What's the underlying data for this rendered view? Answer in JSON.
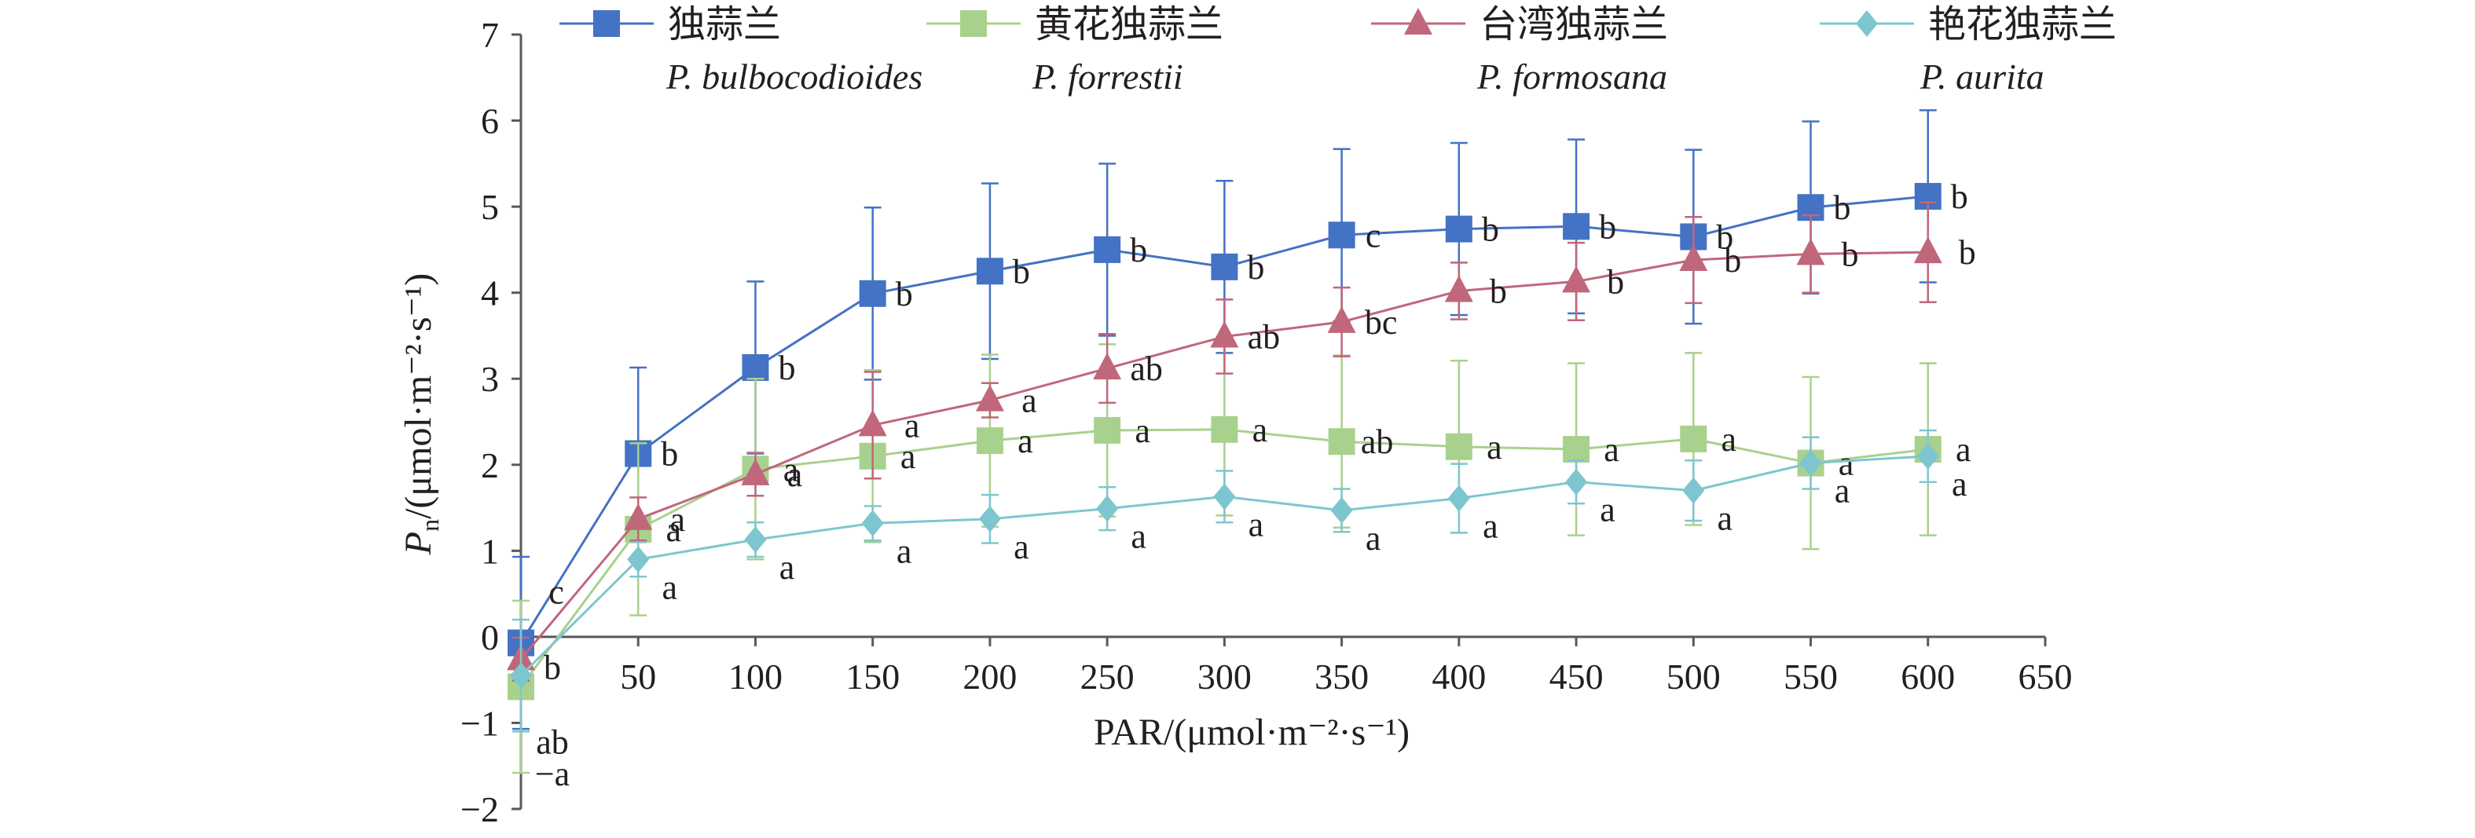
{
  "chart_data": {
    "type": "line",
    "title": "",
    "xlabel": "PAR/(μmol·m⁻²·s⁻¹)",
    "ylabel": {
      "main": "P",
      "sub": "n",
      "rest": "/(μmol·m⁻²·s⁻¹)"
    },
    "xlim": [
      0,
      650
    ],
    "ylim": [
      -2,
      7
    ],
    "x_ticks": [
      0,
      50,
      100,
      150,
      200,
      250,
      300,
      350,
      400,
      450,
      500,
      550,
      600,
      650
    ],
    "x_tick_labels": [
      "0",
      "50",
      "100",
      "150",
      "200",
      "250",
      "300",
      "350",
      "400",
      "450",
      "500",
      "550",
      "600",
      "650"
    ],
    "y_ticks": [
      -2,
      -1,
      0,
      1,
      2,
      3,
      4,
      5,
      6,
      7
    ],
    "y_tick_labels": [
      "−2",
      "−1",
      "0",
      "1",
      "2",
      "3",
      "4",
      "5",
      "6",
      "7"
    ],
    "grid": false,
    "legend_position": "top",
    "x": [
      0,
      50,
      100,
      150,
      200,
      250,
      300,
      350,
      400,
      450,
      500,
      550,
      600
    ],
    "series": [
      {
        "name": "独蒜兰",
        "sci_name": "P. bulbocodioides",
        "marker": "square",
        "color": "#4472c4",
        "values": [
          -0.07,
          2.13,
          3.13,
          3.99,
          4.25,
          4.5,
          4.3,
          4.67,
          4.74,
          4.77,
          4.65,
          4.99,
          5.12
        ],
        "errors": [
          1.0,
          1.0,
          1.0,
          1.0,
          1.02,
          1.0,
          1.0,
          1.0,
          1.0,
          1.01,
          1.01,
          1.0,
          1.0
        ],
        "sig": [
          "c",
          "b",
          "b",
          "b",
          "b",
          "b",
          "b",
          "c",
          "b",
          "b",
          "b",
          "b",
          "b"
        ]
      },
      {
        "name": "黄花独蒜兰",
        "sci_name": "P. forrestii",
        "marker": "square",
        "color": "#a9d18e",
        "values": [
          -0.58,
          1.25,
          1.95,
          2.1,
          2.28,
          2.4,
          2.41,
          2.27,
          2.21,
          2.18,
          2.3,
          2.02,
          2.18
        ],
        "errors": [
          1.0,
          1.0,
          1.05,
          1.0,
          1.0,
          1.0,
          1.0,
          1.0,
          1.0,
          1.0,
          1.0,
          1.0,
          1.0
        ],
        "sig": [
          "ab",
          "a",
          "a",
          "a",
          "a",
          "a",
          "a",
          "ab",
          "a",
          "a",
          "a",
          "a",
          "a"
        ]
      },
      {
        "name": "台湾独蒜兰",
        "sci_name": "P. formosana",
        "marker": "triangle",
        "color": "#c0677b",
        "values": [
          -0.26,
          1.37,
          1.89,
          2.46,
          2.75,
          3.12,
          3.49,
          3.66,
          4.02,
          4.13,
          4.38,
          4.45,
          4.47
        ],
        "errors": [
          0.25,
          0.25,
          0.25,
          0.62,
          0.2,
          0.4,
          0.43,
          0.4,
          0.33,
          0.45,
          0.5,
          0.45,
          0.58
        ],
        "sig": [
          "b",
          "a",
          "a",
          "a",
          "a",
          "ab",
          "ab",
          "bc",
          "b",
          "b",
          "b",
          "b",
          "b"
        ]
      },
      {
        "name": "艳花独蒜兰",
        "sci_name": "P. aurita",
        "marker": "diamond",
        "color": "#7ec6cf",
        "values": [
          -0.45,
          0.9,
          1.13,
          1.32,
          1.37,
          1.49,
          1.63,
          1.47,
          1.61,
          1.8,
          1.7,
          2.02,
          2.1
        ],
        "errors": [
          0.65,
          0.2,
          0.2,
          0.2,
          0.28,
          0.25,
          0.3,
          0.25,
          0.4,
          0.25,
          0.35,
          0.3,
          0.3
        ],
        "sig": [
          "−a",
          "a",
          "a",
          "a",
          "a",
          "a",
          "a",
          "a",
          "a",
          "a",
          "a",
          "a",
          "a"
        ]
      }
    ]
  }
}
